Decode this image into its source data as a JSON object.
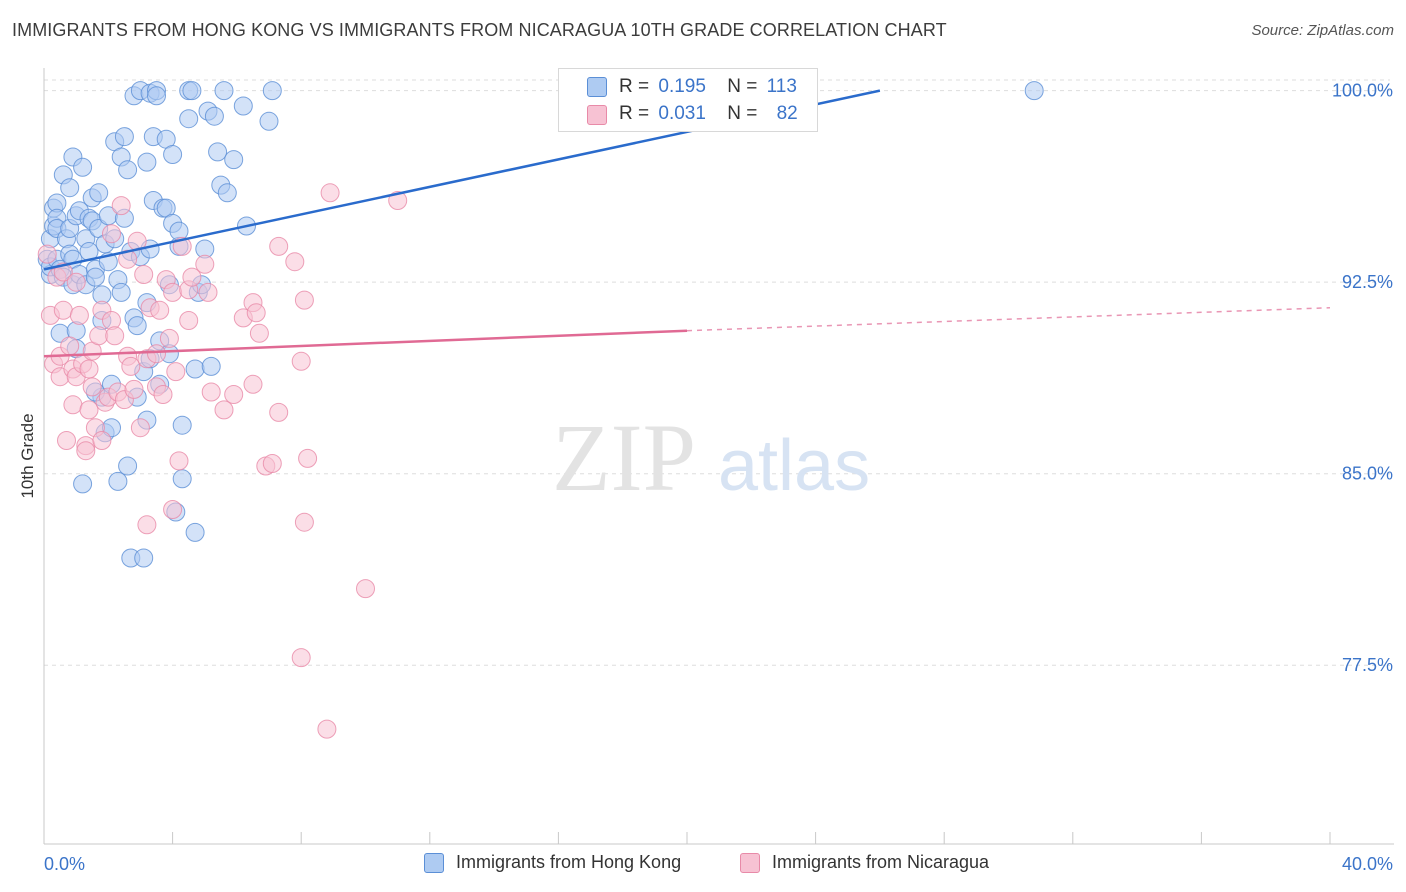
{
  "title": "IMMIGRANTS FROM HONG KONG VS IMMIGRANTS FROM NICARAGUA 10TH GRADE CORRELATION CHART",
  "source": "Source: ZipAtlas.com",
  "watermark": {
    "zip": "ZIP",
    "atlas": "atlas"
  },
  "legend": {
    "r_label": "R =",
    "n_label": "N =",
    "rows": [
      {
        "r": "0.195",
        "n": "113"
      },
      {
        "r": "0.031",
        "n": "82"
      }
    ]
  },
  "colors": {
    "blue_fill": "#aecbf2",
    "blue_stroke": "#5b8fd6",
    "blue_line": "#2a6bcc",
    "pink_fill": "#f7c2d3",
    "pink_stroke": "#e88aa8",
    "pink_line": "#e06a94",
    "tick_text": "#3b74c9",
    "grid": "#dddddd"
  },
  "chart_data": {
    "type": "scatter",
    "title": "IMMIGRANTS FROM HONG KONG VS IMMIGRANTS FROM NICARAGUA 10TH GRADE CORRELATION CHART",
    "xlabel": "",
    "ylabel": "10th Grade",
    "xlim": [
      0,
      40
    ],
    "ylim": [
      70.5,
      101.2
    ],
    "x_tick_labels": [
      "0.0%",
      "40.0%"
    ],
    "y_ticks": [
      77.5,
      85.0,
      92.5,
      100.0
    ],
    "y_tick_labels": [
      "77.5%",
      "85.0%",
      "92.5%",
      "100.0%"
    ],
    "grid": true,
    "legend_position": "top-center",
    "series": [
      {
        "name": "Immigrants from Hong Kong",
        "color": "blue",
        "trend": {
          "x": [
            0.0,
            26.0
          ],
          "y": [
            93.0,
            100.0
          ],
          "dashed_to": null
        },
        "points": [
          [
            0.1,
            93.4
          ],
          [
            0.2,
            94.2
          ],
          [
            0.2,
            92.8
          ],
          [
            0.2,
            93.1
          ],
          [
            0.3,
            94.7
          ],
          [
            0.3,
            95.4
          ],
          [
            0.4,
            95.6
          ],
          [
            0.4,
            95.0
          ],
          [
            0.4,
            94.6
          ],
          [
            0.4,
            93.4
          ],
          [
            0.5,
            90.5
          ],
          [
            0.5,
            93.0
          ],
          [
            0.6,
            96.7
          ],
          [
            0.6,
            92.7
          ],
          [
            0.7,
            94.2
          ],
          [
            0.8,
            94.6
          ],
          [
            0.8,
            96.2
          ],
          [
            0.8,
            93.6
          ],
          [
            0.9,
            93.4
          ],
          [
            0.9,
            92.4
          ],
          [
            0.9,
            97.4
          ],
          [
            1.0,
            89.9
          ],
          [
            1.0,
            95.1
          ],
          [
            1.0,
            90.6
          ],
          [
            1.1,
            95.3
          ],
          [
            1.1,
            92.8
          ],
          [
            1.2,
            97.0
          ],
          [
            1.2,
            84.6
          ],
          [
            1.3,
            94.2
          ],
          [
            1.3,
            92.4
          ],
          [
            1.4,
            93.7
          ],
          [
            1.4,
            95.0
          ],
          [
            1.5,
            95.8
          ],
          [
            1.5,
            94.9
          ],
          [
            1.6,
            93.0
          ],
          [
            1.6,
            92.7
          ],
          [
            1.7,
            96.0
          ],
          [
            1.7,
            94.6
          ],
          [
            1.8,
            92.0
          ],
          [
            1.8,
            91.0
          ],
          [
            1.8,
            88.0
          ],
          [
            1.9,
            94.0
          ],
          [
            1.9,
            86.6
          ],
          [
            2.0,
            95.1
          ],
          [
            2.0,
            93.3
          ],
          [
            2.1,
            88.5
          ],
          [
            2.1,
            86.8
          ],
          [
            2.2,
            98.0
          ],
          [
            2.2,
            94.2
          ],
          [
            2.3,
            84.7
          ],
          [
            2.3,
            92.6
          ],
          [
            2.4,
            97.4
          ],
          [
            2.4,
            92.1
          ],
          [
            2.5,
            98.2
          ],
          [
            2.5,
            95.0
          ],
          [
            2.6,
            96.9
          ],
          [
            2.6,
            85.3
          ],
          [
            2.7,
            81.7
          ],
          [
            2.7,
            93.7
          ],
          [
            2.8,
            99.8
          ],
          [
            2.8,
            91.1
          ],
          [
            2.9,
            90.8
          ],
          [
            2.9,
            88.0
          ],
          [
            3.0,
            100.0
          ],
          [
            3.0,
            93.5
          ],
          [
            3.1,
            89.0
          ],
          [
            3.1,
            81.7
          ],
          [
            3.2,
            97.2
          ],
          [
            3.2,
            91.7
          ],
          [
            3.2,
            87.1
          ],
          [
            3.3,
            99.9
          ],
          [
            3.3,
            93.8
          ],
          [
            3.3,
            89.5
          ],
          [
            3.4,
            98.2
          ],
          [
            3.4,
            95.7
          ],
          [
            3.5,
            100.0
          ],
          [
            3.5,
            99.8
          ],
          [
            3.6,
            90.2
          ],
          [
            3.6,
            88.5
          ],
          [
            3.7,
            95.4
          ],
          [
            3.8,
            98.1
          ],
          [
            3.8,
            95.4
          ],
          [
            3.9,
            92.4
          ],
          [
            3.9,
            89.7
          ],
          [
            4.0,
            97.5
          ],
          [
            4.0,
            94.8
          ],
          [
            4.1,
            83.5
          ],
          [
            4.2,
            93.9
          ],
          [
            4.2,
            94.5
          ],
          [
            4.3,
            86.9
          ],
          [
            4.3,
            84.8
          ],
          [
            4.5,
            100.0
          ],
          [
            4.5,
            98.9
          ],
          [
            4.6,
            100.0
          ],
          [
            4.7,
            82.7
          ],
          [
            4.7,
            89.1
          ],
          [
            4.8,
            92.1
          ],
          [
            4.9,
            92.4
          ],
          [
            5.0,
            93.8
          ],
          [
            5.1,
            99.2
          ],
          [
            5.2,
            89.2
          ],
          [
            5.3,
            99.0
          ],
          [
            5.4,
            97.6
          ],
          [
            5.5,
            96.3
          ],
          [
            5.6,
            100.0
          ],
          [
            5.7,
            96.0
          ],
          [
            5.9,
            97.3
          ],
          [
            6.2,
            99.4
          ],
          [
            6.3,
            94.7
          ],
          [
            7.1,
            100.0
          ],
          [
            7.0,
            98.8
          ],
          [
            30.8,
            100.0
          ],
          [
            1.6,
            88.2
          ]
        ]
      },
      {
        "name": "Immigrants from Nicaragua",
        "color": "pink",
        "trend": {
          "x": [
            0.0,
            20.0
          ],
          "y": [
            89.6,
            90.6
          ],
          "dashed_to": [
            40.0,
            91.5
          ]
        },
        "points": [
          [
            0.1,
            93.6
          ],
          [
            0.2,
            91.2
          ],
          [
            0.3,
            89.3
          ],
          [
            0.4,
            92.7
          ],
          [
            0.5,
            89.6
          ],
          [
            0.5,
            88.8
          ],
          [
            0.6,
            92.9
          ],
          [
            0.6,
            91.4
          ],
          [
            0.7,
            86.3
          ],
          [
            0.8,
            90.0
          ],
          [
            0.9,
            89.1
          ],
          [
            0.9,
            87.7
          ],
          [
            1.0,
            92.5
          ],
          [
            1.0,
            88.8
          ],
          [
            1.1,
            91.2
          ],
          [
            1.2,
            89.3
          ],
          [
            1.3,
            86.1
          ],
          [
            1.3,
            85.9
          ],
          [
            1.4,
            89.1
          ],
          [
            1.4,
            87.5
          ],
          [
            1.5,
            89.8
          ],
          [
            1.5,
            88.4
          ],
          [
            1.6,
            86.8
          ],
          [
            1.7,
            90.4
          ],
          [
            1.8,
            91.4
          ],
          [
            1.8,
            86.3
          ],
          [
            1.9,
            87.8
          ],
          [
            2.0,
            88.0
          ],
          [
            2.1,
            94.4
          ],
          [
            2.1,
            91.0
          ],
          [
            2.2,
            90.4
          ],
          [
            2.3,
            88.2
          ],
          [
            2.4,
            95.5
          ],
          [
            2.5,
            87.9
          ],
          [
            2.6,
            89.6
          ],
          [
            2.6,
            93.4
          ],
          [
            2.7,
            89.2
          ],
          [
            2.8,
            88.3
          ],
          [
            2.9,
            94.1
          ],
          [
            3.0,
            86.8
          ],
          [
            3.1,
            92.8
          ],
          [
            3.2,
            89.5
          ],
          [
            3.2,
            83.0
          ],
          [
            3.3,
            91.5
          ],
          [
            3.5,
            89.7
          ],
          [
            3.5,
            88.4
          ],
          [
            3.6,
            91.4
          ],
          [
            3.7,
            88.1
          ],
          [
            3.8,
            92.6
          ],
          [
            3.9,
            90.3
          ],
          [
            4.0,
            92.1
          ],
          [
            4.0,
            83.6
          ],
          [
            4.1,
            89.0
          ],
          [
            4.2,
            85.5
          ],
          [
            4.3,
            93.9
          ],
          [
            4.5,
            92.2
          ],
          [
            4.5,
            91.0
          ],
          [
            4.6,
            92.7
          ],
          [
            5.0,
            93.2
          ],
          [
            5.1,
            92.1
          ],
          [
            5.2,
            88.2
          ],
          [
            5.6,
            87.5
          ],
          [
            5.9,
            88.1
          ],
          [
            6.2,
            91.1
          ],
          [
            6.5,
            91.7
          ],
          [
            6.5,
            88.5
          ],
          [
            6.6,
            91.3
          ],
          [
            6.7,
            90.5
          ],
          [
            6.9,
            85.3
          ],
          [
            7.3,
            93.9
          ],
          [
            7.8,
            93.3
          ],
          [
            8.0,
            89.4
          ],
          [
            7.1,
            85.4
          ],
          [
            7.3,
            87.4
          ],
          [
            8.1,
            91.8
          ],
          [
            8.2,
            85.6
          ],
          [
            8.8,
            75.0
          ],
          [
            8.9,
            96.0
          ],
          [
            8.0,
            77.8
          ],
          [
            8.1,
            83.1
          ],
          [
            10.0,
            80.5
          ],
          [
            11.0,
            95.7
          ]
        ]
      }
    ]
  },
  "bottom_legend": [
    {
      "label": "Immigrants from Hong Kong"
    },
    {
      "label": "Immigrants from Nicaragua"
    }
  ]
}
